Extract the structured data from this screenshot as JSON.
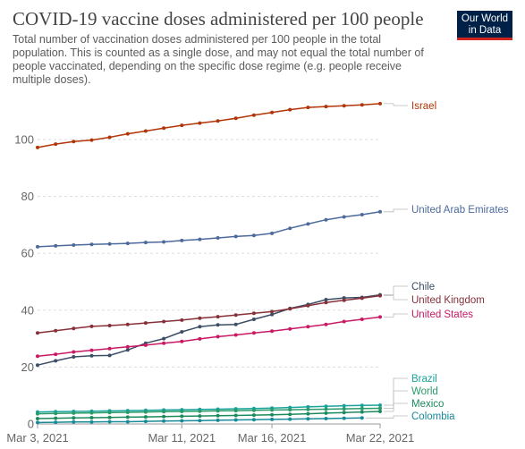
{
  "header": {
    "title": "COVID-19 vaccine doses administered per 100 people",
    "subtitle": "Total number of vaccination doses administered per 100 people in the total population. This is counted as a single dose, and may not equal the total number of people vaccinated, depending on the specific dose regime (e.g. people receive multiple doses).",
    "logo_line1": "Our World",
    "logo_line2": "in Data"
  },
  "chart_data": {
    "type": "line",
    "x": [
      "2021-03-03",
      "2021-03-04",
      "2021-03-05",
      "2021-03-06",
      "2021-03-07",
      "2021-03-08",
      "2021-03-09",
      "2021-03-10",
      "2021-03-11",
      "2021-03-12",
      "2021-03-13",
      "2021-03-14",
      "2021-03-15",
      "2021-03-16",
      "2021-03-17",
      "2021-03-18",
      "2021-03-19",
      "2021-03-20",
      "2021-03-21",
      "2021-03-22"
    ],
    "x_tick_labels": [
      "Mar 3, 2021",
      "Mar 11, 2021",
      "Mar 16, 2021",
      "Mar 22, 2021"
    ],
    "x_tick_dates": [
      "2021-03-03",
      "2021-03-11",
      "2021-03-16",
      "2021-03-22"
    ],
    "y_ticks": [
      0,
      20,
      40,
      60,
      80,
      100
    ],
    "ylim": [
      0,
      115
    ],
    "grid": "horizontal dashed",
    "legend": "right, labels at line ends",
    "series": [
      {
        "name": "Israel",
        "color": "#b13507",
        "values": [
          97.2,
          98.4,
          99.3,
          99.8,
          100.8,
          102.0,
          103.0,
          104.0,
          105.0,
          105.8,
          106.5,
          107.5,
          108.6,
          109.5,
          110.5,
          111.3,
          111.6,
          111.9,
          112.2,
          112.6
        ]
      },
      {
        "name": "United Arab Emirates",
        "color": "#4c6a9c",
        "values": [
          62.3,
          62.6,
          62.9,
          63.1,
          63.3,
          63.5,
          63.8,
          64.0,
          64.5,
          64.9,
          65.4,
          65.9,
          66.3,
          67.0,
          68.8,
          70.3,
          71.8,
          72.8,
          73.6,
          74.6
        ]
      },
      {
        "name": "Chile",
        "color": "#3c4e66",
        "values": [
          20.7,
          22.2,
          23.6,
          24.0,
          24.1,
          26.0,
          28.4,
          30.0,
          32.4,
          34.2,
          34.8,
          35.0,
          36.8,
          38.5,
          40.6,
          42.0,
          43.7,
          44.3,
          44.5,
          45.4
        ]
      },
      {
        "name": "United Kingdom",
        "color": "#883039",
        "values": [
          32.0,
          32.8,
          33.6,
          34.3,
          34.6,
          35.0,
          35.5,
          36.0,
          36.5,
          37.2,
          37.7,
          38.3,
          38.9,
          39.5,
          40.5,
          41.6,
          42.7,
          43.5,
          44.2,
          45.1
        ]
      },
      {
        "name": "United States",
        "color": "#c91964",
        "values": [
          23.8,
          24.5,
          25.3,
          25.9,
          26.5,
          27.1,
          27.7,
          28.4,
          29.0,
          29.9,
          30.7,
          31.3,
          32.0,
          32.6,
          33.4,
          34.2,
          35.0,
          36.0,
          36.8,
          37.6
        ]
      },
      {
        "name": "Brazil",
        "color": "#18a39b",
        "values": [
          4.2,
          4.3,
          4.4,
          4.5,
          4.6,
          4.7,
          4.8,
          4.9,
          5.0,
          5.1,
          5.2,
          5.3,
          5.4,
          5.6,
          5.8,
          6.0,
          6.2,
          6.4,
          6.5,
          6.6
        ]
      },
      {
        "name": "World",
        "color": "#2a9a6a",
        "values": [
          3.6,
          3.7,
          3.8,
          3.9,
          4.0,
          4.1,
          4.2,
          4.3,
          4.4,
          4.5,
          4.6,
          4.7,
          4.8,
          4.9,
          5.0,
          5.1,
          5.2,
          5.3,
          5.4,
          5.5
        ]
      },
      {
        "name": "Mexico",
        "color": "#1d8a5e",
        "values": [
          1.9,
          2.0,
          2.1,
          2.2,
          2.3,
          2.4,
          2.5,
          2.6,
          2.7,
          2.8,
          2.9,
          3.0,
          3.1,
          3.2,
          3.4,
          3.6,
          3.8,
          4.0,
          4.2,
          4.4
        ]
      },
      {
        "name": "Colombia",
        "color": "#188a98",
        "values": [
          0.5,
          0.6,
          0.7,
          0.7,
          0.8,
          0.8,
          0.9,
          1.0,
          1.1,
          1.2,
          1.3,
          1.4,
          1.5,
          1.6,
          1.7,
          1.8,
          1.9,
          2.0,
          2.1,
          null
        ]
      }
    ]
  }
}
